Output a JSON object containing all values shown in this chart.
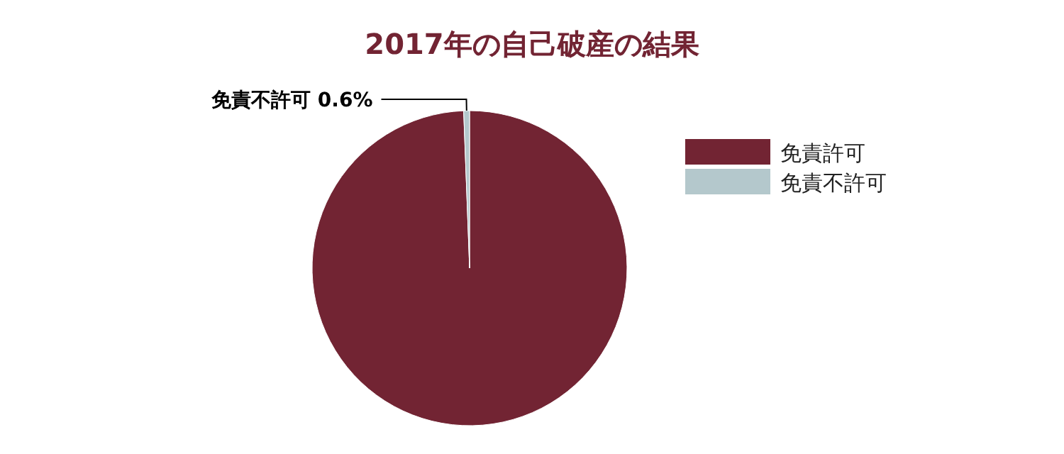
{
  "chart_data": {
    "type": "pie",
    "title": "2017年の自己破産の結果",
    "categories": [
      "免責許可",
      "免責不許可"
    ],
    "values": [
      99.4,
      0.6
    ],
    "colors": [
      "#722433",
      "#b4c8cc"
    ],
    "value_labels": [
      null,
      "0.6%"
    ],
    "legend": "right"
  }
}
